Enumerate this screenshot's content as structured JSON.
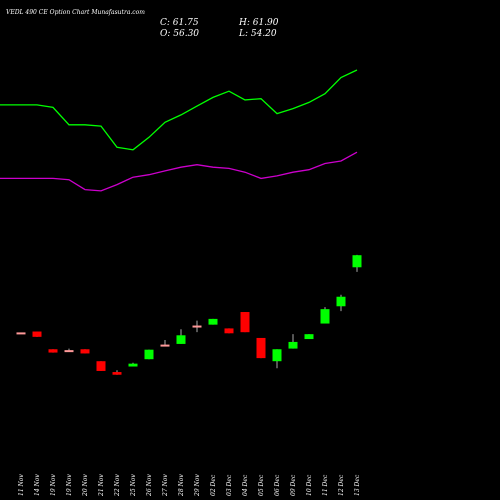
{
  "header": {
    "title": "VEDL 490  CE Option Chart Munafasutra.com",
    "close": "C: 61.75",
    "high": "H: 61.90",
    "open": "O: 56.30",
    "low": "L: 54.20"
  },
  "colors": {
    "background": "#000000",
    "up_candle": "#00ff00",
    "down_candle": "#ff0000",
    "upper_band": "#00ff00",
    "lower_band": "#cc00cc",
    "text": "#ffffff"
  },
  "chart_data": {
    "type": "candlestick",
    "categories": [
      "11 Nov",
      "14 Nov",
      "19 Nov",
      "19 Nov",
      "20 Nov",
      "21 Nov",
      "22 Nov",
      "25 Nov",
      "26 Nov",
      "27 Nov",
      "28 Nov",
      "29 Nov",
      "02 Dec",
      "03 Dec",
      "04 Dec",
      "05 Dec",
      "06 Dec",
      "09 Dec",
      "10 Dec",
      "11 Dec",
      "12 Dec",
      "13 Dec"
    ],
    "candles": [
      {
        "open": 26.9,
        "high": 26.9,
        "low": 26.9,
        "close": 26.9
      },
      {
        "open": 27.3,
        "high": 27.3,
        "low": 24.9,
        "close": 24.9
      },
      {
        "open": 19.3,
        "high": 19.3,
        "low": 17.8,
        "close": 17.8
      },
      {
        "open": 18.9,
        "high": 19.6,
        "low": 18.2,
        "close": 18.9
      },
      {
        "open": 19.3,
        "high": 19.3,
        "low": 17.4,
        "close": 17.4
      },
      {
        "open": 13.9,
        "high": 13.9,
        "low": 9.5,
        "close": 9.5
      },
      {
        "open": 9.0,
        "high": 9.8,
        "low": 7.8,
        "close": 7.8
      },
      {
        "open": 11.5,
        "high": 13.2,
        "low": 11.5,
        "close": 12.8
      },
      {
        "open": 14.8,
        "high": 19.1,
        "low": 14.8,
        "close": 19.1
      },
      {
        "open": 21.4,
        "high": 23.5,
        "low": 20.7,
        "close": 21.4
      },
      {
        "open": 21.7,
        "high": 28.3,
        "low": 21.7,
        "close": 25.6
      },
      {
        "open": 30.0,
        "high": 32.2,
        "low": 27.0,
        "close": 30.0
      },
      {
        "open": 30.4,
        "high": 33.0,
        "low": 30.4,
        "close": 33.0
      },
      {
        "open": 28.7,
        "high": 28.7,
        "low": 26.5,
        "close": 26.5
      },
      {
        "open": 36.1,
        "high": 36.1,
        "low": 27.0,
        "close": 27.0
      },
      {
        "open": 24.4,
        "high": 24.4,
        "low": 15.3,
        "close": 15.3
      },
      {
        "open": 13.9,
        "high": 19.3,
        "low": 10.7,
        "close": 19.3
      },
      {
        "open": 19.6,
        "high": 26.1,
        "low": 19.6,
        "close": 22.6
      },
      {
        "open": 23.9,
        "high": 26.1,
        "low": 23.9,
        "close": 26.1
      },
      {
        "open": 30.9,
        "high": 38.3,
        "low": 30.9,
        "close": 37.4
      },
      {
        "open": 38.7,
        "high": 43.9,
        "low": 36.5,
        "close": 43.0
      },
      {
        "open": 56.3,
        "high": 61.9,
        "low": 54.2,
        "close": 61.75
      }
    ],
    "upper_band": [
      102,
      102,
      100,
      86,
      86,
      85,
      68,
      66,
      76,
      88,
      94,
      101,
      108,
      113,
      106,
      107,
      95,
      99,
      104,
      111,
      124,
      130
    ],
    "lower_band": [
      43,
      43,
      43,
      42,
      34,
      33,
      38,
      44,
      46,
      49,
      52,
      54,
      52,
      51,
      48,
      43,
      45,
      48,
      50,
      55,
      57,
      64
    ],
    "ylim": [
      0,
      130
    ]
  }
}
